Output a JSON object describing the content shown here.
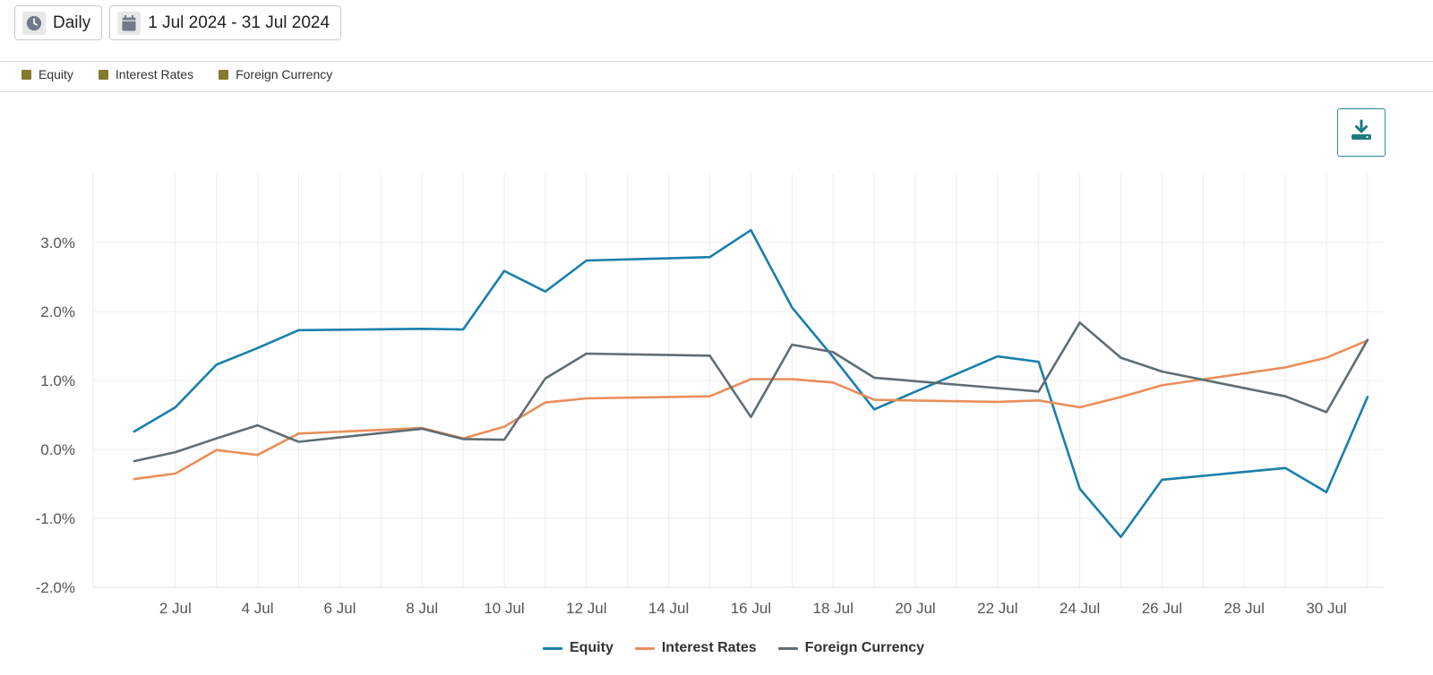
{
  "toolbar": {
    "frequency_label": "Daily",
    "date_range_label": "1 Jul 2024 - 31 Jul 2024",
    "frequency_icon": "clock-icon",
    "date_icon": "calendar-icon"
  },
  "legend_top": {
    "items": [
      "Equity",
      "Interest Rates",
      "Foreign Currency"
    ],
    "swatch_color": "#857a2e"
  },
  "download": {
    "icon": "download-icon",
    "color": "#1f7a80"
  },
  "chart_data": {
    "type": "line",
    "x_dates": [
      "2024-07-01",
      "2024-07-02",
      "2024-07-03",
      "2024-07-04",
      "2024-07-05",
      "2024-07-08",
      "2024-07-09",
      "2024-07-10",
      "2024-07-11",
      "2024-07-12",
      "2024-07-15",
      "2024-07-16",
      "2024-07-17",
      "2024-07-18",
      "2024-07-19",
      "2024-07-22",
      "2024-07-23",
      "2024-07-24",
      "2024-07-25",
      "2024-07-26",
      "2024-07-29",
      "2024-07-30",
      "2024-07-31"
    ],
    "x_ticks": [
      "2 Jul",
      "4 Jul",
      "6 Jul",
      "8 Jul",
      "10 Jul",
      "12 Jul",
      "14 Jul",
      "16 Jul",
      "18 Jul",
      "20 Jul",
      "22 Jul",
      "24 Jul",
      "26 Jul",
      "28 Jul",
      "30 Jul"
    ],
    "x_tick_days": [
      2,
      4,
      6,
      8,
      10,
      12,
      14,
      16,
      18,
      20,
      22,
      24,
      26,
      28,
      30
    ],
    "y_ticks": [
      "-2.0%",
      "-1.0%",
      "0.0%",
      "1.0%",
      "2.0%",
      "3.0%"
    ],
    "y_tick_values": [
      -2,
      -1,
      0,
      1,
      2,
      3
    ],
    "ylim": [
      -2.0,
      4.0
    ],
    "xlim_days": [
      0,
      31.7
    ],
    "series": [
      {
        "name": "Equity",
        "color": "#1a7fab",
        "values": [
          0.26,
          0.61,
          1.23,
          1.47,
          1.73,
          1.75,
          1.74,
          2.59,
          2.29,
          2.74,
          2.79,
          3.18,
          2.06,
          1.34,
          0.58,
          1.35,
          1.27,
          -0.57,
          -1.27,
          -0.44,
          -0.27,
          -0.62,
          0.76
        ]
      },
      {
        "name": "Interest Rates",
        "color": "#ea8e5a",
        "values": [
          -0.43,
          -0.35,
          -0.01,
          -0.08,
          0.23,
          0.31,
          0.16,
          0.33,
          0.68,
          0.74,
          0.77,
          1.02,
          1.02,
          0.97,
          0.72,
          0.69,
          0.71,
          0.61,
          0.76,
          0.93,
          1.19,
          1.33,
          1.58
        ]
      },
      {
        "name": "Foreign Currency",
        "color": "#616d73",
        "values": [
          -0.17,
          -0.04,
          0.16,
          0.35,
          0.11,
          0.3,
          0.15,
          0.14,
          1.03,
          1.39,
          1.36,
          0.47,
          1.52,
          1.41,
          1.04,
          0.89,
          0.84,
          1.84,
          1.33,
          1.13,
          0.77,
          0.54,
          1.59
        ]
      }
    ],
    "grid": true,
    "legend_position": "bottom"
  }
}
